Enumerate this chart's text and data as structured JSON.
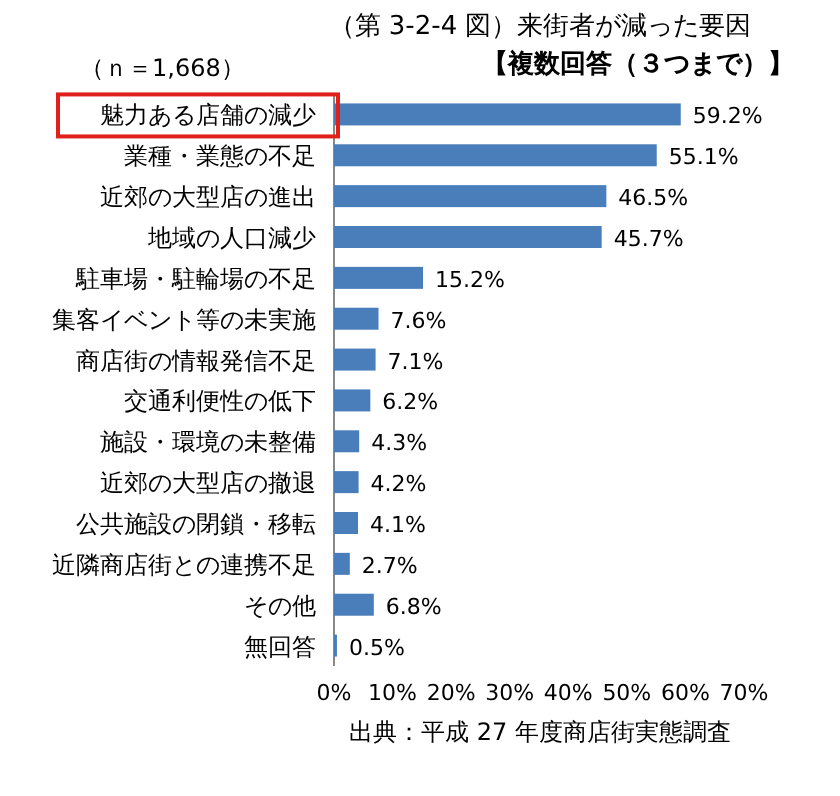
{
  "chart_data": {
    "type": "bar",
    "orientation": "horizontal",
    "title": "（第 3-2-4 図）来街者が減った要因",
    "subtitle": "【複数回答（３つまで）】",
    "categories": [
      "魅力ある店舗の減少",
      "業種・業態の不足",
      "近郊の大型店の進出",
      "地域の人口減少",
      "駐車場・駐輪場の不足",
      "集客イベント等の未実施",
      "商店街の情報発信不足",
      "交通利便性の低下",
      "施設・環境の未整備",
      "近郊の大型店の撤退",
      "公共施設の閉鎖・移転",
      "近隣商店街との連携不足",
      "その他",
      "無回答"
    ],
    "values": [
      59.2,
      55.1,
      46.5,
      45.7,
      15.2,
      7.6,
      7.1,
      6.2,
      4.3,
      4.2,
      4.1,
      2.7,
      6.8,
      0.5
    ],
    "value_labels": [
      "59.2%",
      "55.1%",
      "46.5%",
      "45.7%",
      "15.2%",
      "7.6%",
      "7.1%",
      "6.2%",
      "4.3%",
      "4.2%",
      "4.1%",
      "2.7%",
      "6.8%",
      "0.5%"
    ],
    "color": "#4a7ebb",
    "xlim": [
      0,
      70
    ],
    "xticks": [
      {
        "value": 0,
        "label": "0%"
      },
      {
        "value": 10,
        "label": "10%"
      },
      {
        "value": 20,
        "label": "20%"
      },
      {
        "value": 30,
        "label": "30%"
      },
      {
        "value": 40,
        "label": "40%"
      },
      {
        "value": 50,
        "label": "50%"
      },
      {
        "value": 60,
        "label": "60%"
      },
      {
        "value": 70,
        "label": "70%"
      }
    ],
    "annotations": [
      "（ｎ＝1,668）",
      "出典：平成 27 年度商店街実態調査"
    ]
  }
}
